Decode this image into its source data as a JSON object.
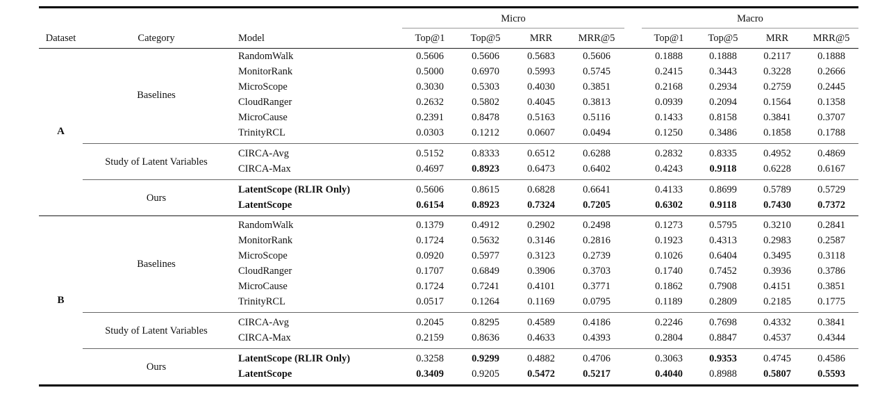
{
  "colors": {
    "text": "#111111",
    "thick_rule": "#000000",
    "mid_rule": "#1a1a1a",
    "cmidrule": "#999999",
    "group_rule": "#666666",
    "background": "#ffffff"
  },
  "table": {
    "header": {
      "dataset": "Dataset",
      "category": "Category",
      "model": "Model",
      "groups": [
        {
          "label": "Micro"
        },
        {
          "label": "Macro"
        }
      ],
      "metrics": [
        "Top@1",
        "Top@5",
        "MRR",
        "MRR@5"
      ]
    },
    "sections": [
      {
        "dataset": "A",
        "groups": [
          {
            "category": "Baselines",
            "rows": [
              {
                "model": "RandomWalk",
                "bold_model": false,
                "values": [
                  "0.5606",
                  "0.5606",
                  "0.5683",
                  "0.5606",
                  "0.1888",
                  "0.1888",
                  "0.2117",
                  "0.1888"
                ],
                "bold": [
                  false,
                  false,
                  false,
                  false,
                  false,
                  false,
                  false,
                  false
                ]
              },
              {
                "model": "MonitorRank",
                "bold_model": false,
                "values": [
                  "0.5000",
                  "0.6970",
                  "0.5993",
                  "0.5745",
                  "0.2415",
                  "0.3443",
                  "0.3228",
                  "0.2666"
                ],
                "bold": [
                  false,
                  false,
                  false,
                  false,
                  false,
                  false,
                  false,
                  false
                ]
              },
              {
                "model": "MicroScope",
                "bold_model": false,
                "values": [
                  "0.3030",
                  "0.5303",
                  "0.4030",
                  "0.3851",
                  "0.2168",
                  "0.2934",
                  "0.2759",
                  "0.2445"
                ],
                "bold": [
                  false,
                  false,
                  false,
                  false,
                  false,
                  false,
                  false,
                  false
                ]
              },
              {
                "model": "CloudRanger",
                "bold_model": false,
                "values": [
                  "0.2632",
                  "0.5802",
                  "0.4045",
                  "0.3813",
                  "0.0939",
                  "0.2094",
                  "0.1564",
                  "0.1358"
                ],
                "bold": [
                  false,
                  false,
                  false,
                  false,
                  false,
                  false,
                  false,
                  false
                ]
              },
              {
                "model": "MicroCause",
                "bold_model": false,
                "values": [
                  "0.2391",
                  "0.8478",
                  "0.5163",
                  "0.5116",
                  "0.1433",
                  "0.8158",
                  "0.3841",
                  "0.3707"
                ],
                "bold": [
                  false,
                  false,
                  false,
                  false,
                  false,
                  false,
                  false,
                  false
                ]
              },
              {
                "model": "TrinityRCL",
                "bold_model": false,
                "values": [
                  "0.0303",
                  "0.1212",
                  "0.0607",
                  "0.0494",
                  "0.1250",
                  "0.3486",
                  "0.1858",
                  "0.1788"
                ],
                "bold": [
                  false,
                  false,
                  false,
                  false,
                  false,
                  false,
                  false,
                  false
                ]
              }
            ]
          },
          {
            "category": "Study of Latent Variables",
            "rows": [
              {
                "model": "CIRCA-Avg",
                "bold_model": false,
                "values": [
                  "0.5152",
                  "0.8333",
                  "0.6512",
                  "0.6288",
                  "0.2832",
                  "0.8335",
                  "0.4952",
                  "0.4869"
                ],
                "bold": [
                  false,
                  false,
                  false,
                  false,
                  false,
                  false,
                  false,
                  false
                ]
              },
              {
                "model": "CIRCA-Max",
                "bold_model": false,
                "values": [
                  "0.4697",
                  "0.8923",
                  "0.6473",
                  "0.6402",
                  "0.4243",
                  "0.9118",
                  "0.6228",
                  "0.6167"
                ],
                "bold": [
                  false,
                  true,
                  false,
                  false,
                  false,
                  true,
                  false,
                  false
                ]
              }
            ]
          },
          {
            "category": "Ours",
            "rows": [
              {
                "model": "LatentScope (RLIR Only)",
                "bold_model": true,
                "values": [
                  "0.5606",
                  "0.8615",
                  "0.6828",
                  "0.6641",
                  "0.4133",
                  "0.8699",
                  "0.5789",
                  "0.5729"
                ],
                "bold": [
                  false,
                  false,
                  false,
                  false,
                  false,
                  false,
                  false,
                  false
                ]
              },
              {
                "model": "LatentScope",
                "bold_model": true,
                "values": [
                  "0.6154",
                  "0.8923",
                  "0.7324",
                  "0.7205",
                  "0.6302",
                  "0.9118",
                  "0.7430",
                  "0.7372"
                ],
                "bold": [
                  true,
                  true,
                  true,
                  true,
                  true,
                  true,
                  true,
                  true
                ]
              }
            ]
          }
        ]
      },
      {
        "dataset": "B",
        "groups": [
          {
            "category": "Baselines",
            "rows": [
              {
                "model": "RandomWalk",
                "bold_model": false,
                "values": [
                  "0.1379",
                  "0.4912",
                  "0.2902",
                  "0.2498",
                  "0.1273",
                  "0.5795",
                  "0.3210",
                  "0.2841"
                ],
                "bold": [
                  false,
                  false,
                  false,
                  false,
                  false,
                  false,
                  false,
                  false
                ]
              },
              {
                "model": "MonitorRank",
                "bold_model": false,
                "values": [
                  "0.1724",
                  "0.5632",
                  "0.3146",
                  "0.2816",
                  "0.1923",
                  "0.4313",
                  "0.2983",
                  "0.2587"
                ],
                "bold": [
                  false,
                  false,
                  false,
                  false,
                  false,
                  false,
                  false,
                  false
                ]
              },
              {
                "model": "MicroScope",
                "bold_model": false,
                "values": [
                  "0.0920",
                  "0.5977",
                  "0.3123",
                  "0.2739",
                  "0.1026",
                  "0.6404",
                  "0.3495",
                  "0.3118"
                ],
                "bold": [
                  false,
                  false,
                  false,
                  false,
                  false,
                  false,
                  false,
                  false
                ]
              },
              {
                "model": "CloudRanger",
                "bold_model": false,
                "values": [
                  "0.1707",
                  "0.6849",
                  "0.3906",
                  "0.3703",
                  "0.1740",
                  "0.7452",
                  "0.3936",
                  "0.3786"
                ],
                "bold": [
                  false,
                  false,
                  false,
                  false,
                  false,
                  false,
                  false,
                  false
                ]
              },
              {
                "model": "MicroCause",
                "bold_model": false,
                "values": [
                  "0.1724",
                  "0.7241",
                  "0.4101",
                  "0.3771",
                  "0.1862",
                  "0.7908",
                  "0.4151",
                  "0.3851"
                ],
                "bold": [
                  false,
                  false,
                  false,
                  false,
                  false,
                  false,
                  false,
                  false
                ]
              },
              {
                "model": "TrinityRCL",
                "bold_model": false,
                "values": [
                  "0.0517",
                  "0.1264",
                  "0.1169",
                  "0.0795",
                  "0.1189",
                  "0.2809",
                  "0.2185",
                  "0.1775"
                ],
                "bold": [
                  false,
                  false,
                  false,
                  false,
                  false,
                  false,
                  false,
                  false
                ]
              }
            ]
          },
          {
            "category": "Study of Latent Variables",
            "rows": [
              {
                "model": "CIRCA-Avg",
                "bold_model": false,
                "values": [
                  "0.2045",
                  "0.8295",
                  "0.4589",
                  "0.4186",
                  "0.2246",
                  "0.7698",
                  "0.4332",
                  "0.3841"
                ],
                "bold": [
                  false,
                  false,
                  false,
                  false,
                  false,
                  false,
                  false,
                  false
                ]
              },
              {
                "model": "CIRCA-Max",
                "bold_model": false,
                "values": [
                  "0.2159",
                  "0.8636",
                  "0.4633",
                  "0.4393",
                  "0.2804",
                  "0.8847",
                  "0.4537",
                  "0.4344"
                ],
                "bold": [
                  false,
                  false,
                  false,
                  false,
                  false,
                  false,
                  false,
                  false
                ]
              }
            ]
          },
          {
            "category": "Ours",
            "rows": [
              {
                "model": "LatentScope (RLIR Only)",
                "bold_model": true,
                "values": [
                  "0.3258",
                  "0.9299",
                  "0.4882",
                  "0.4706",
                  "0.3063",
                  "0.9353",
                  "0.4745",
                  "0.4586"
                ],
                "bold": [
                  false,
                  true,
                  false,
                  false,
                  false,
                  true,
                  false,
                  false
                ]
              },
              {
                "model": "LatentScope",
                "bold_model": true,
                "values": [
                  "0.3409",
                  "0.9205",
                  "0.5472",
                  "0.5217",
                  "0.4040",
                  "0.8988",
                  "0.5807",
                  "0.5593"
                ],
                "bold": [
                  true,
                  false,
                  true,
                  true,
                  true,
                  false,
                  true,
                  true
                ]
              }
            ]
          }
        ]
      }
    ]
  }
}
